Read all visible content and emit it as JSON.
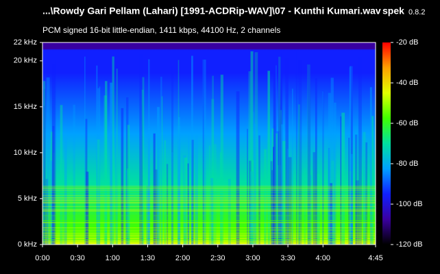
{
  "chart_data": {
    "type": "spectrogram",
    "title": "...\\Rowdy Gari Pellam (Lahari) [1991-ACDRip-WAV]\\07 - Kunthi Kumari.wav",
    "app": "spek",
    "version": "0.8.2",
    "subtitle": "PCM signed 16-bit little-endian, 1411 kbps, 44100 Hz, 2 channels",
    "xlim": [
      0,
      285
    ],
    "xticks": [
      {
        "value": 0,
        "label": "0:00"
      },
      {
        "value": 30,
        "label": "0:30"
      },
      {
        "value": 60,
        "label": "1:00"
      },
      {
        "value": 90,
        "label": "1:30"
      },
      {
        "value": 120,
        "label": "2:00"
      },
      {
        "value": 150,
        "label": "2:30"
      },
      {
        "value": 180,
        "label": "3:00"
      },
      {
        "value": 210,
        "label": "3:30"
      },
      {
        "value": 240,
        "label": "4:00"
      },
      {
        "value": 285,
        "label": "4:45"
      }
    ],
    "ylim": [
      0,
      22
    ],
    "yticks": [
      {
        "value": 0,
        "label": "0 kHz"
      },
      {
        "value": 5,
        "label": "5 kHz"
      },
      {
        "value": 10,
        "label": "10 kHz"
      },
      {
        "value": 15,
        "label": "15 kHz"
      },
      {
        "value": 20,
        "label": "20 kHz"
      },
      {
        "value": 22,
        "label": "22 kHz"
      }
    ],
    "zlim": [
      -120,
      -20
    ],
    "zticks": [
      {
        "value": -20,
        "label": "-20 dB"
      },
      {
        "value": -40,
        "label": "-40 dB"
      },
      {
        "value": -60,
        "label": "-60 dB"
      },
      {
        "value": -80,
        "label": "-80 dB"
      },
      {
        "value": -100,
        "label": "-100 dB"
      },
      {
        "value": -120,
        "label": "-120 dB"
      }
    ],
    "colormap": [
      "#000000",
      "#3a00a0",
      "#1020ff",
      "#00a0ff",
      "#00e0a0",
      "#40ff00",
      "#e0ff00",
      "#ffa000",
      "#ff0000"
    ]
  }
}
